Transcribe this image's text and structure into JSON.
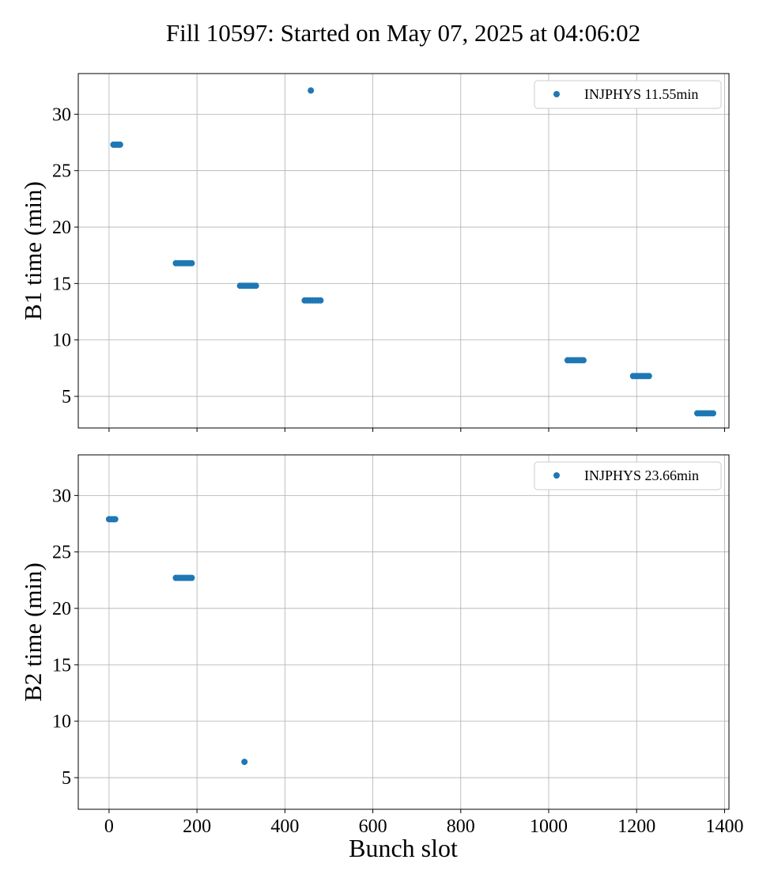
{
  "title": "Fill 10597: Started on May 07, 2025 at 04:06:02",
  "colors": {
    "series": "#1f77b4",
    "grid": "#b0b0b0",
    "axes": "#000000",
    "legend_border": "#cccccc"
  },
  "chart_data": [
    {
      "type": "scatter",
      "xlabel": "",
      "ylabel": "B1 time (min)",
      "xlim": [
        -70,
        1410
      ],
      "ylim": [
        2.2,
        33.6
      ],
      "xticks": [
        0,
        200,
        400,
        600,
        800,
        1000,
        1200,
        1400
      ],
      "yticks": [
        5,
        10,
        15,
        20,
        25,
        30
      ],
      "grid": true,
      "legend_position": "top-right",
      "series": [
        {
          "name": "INJPHYS 11.55min",
          "points": [
            [
              10,
              27.3
            ],
            [
              14,
              27.3
            ],
            [
              18,
              27.3
            ],
            [
              22,
              27.3
            ],
            [
              25,
              27.3
            ],
            [
              152,
              16.8
            ],
            [
              158,
              16.8
            ],
            [
              164,
              16.8
            ],
            [
              170,
              16.8
            ],
            [
              176,
              16.8
            ],
            [
              182,
              16.8
            ],
            [
              188,
              16.8
            ],
            [
              298,
              14.8
            ],
            [
              304,
              14.8
            ],
            [
              310,
              14.8
            ],
            [
              316,
              14.8
            ],
            [
              322,
              14.8
            ],
            [
              328,
              14.8
            ],
            [
              334,
              14.8
            ],
            [
              445,
              13.5
            ],
            [
              451,
              13.5
            ],
            [
              457,
              13.5
            ],
            [
              463,
              13.5
            ],
            [
              469,
              13.5
            ],
            [
              475,
              13.5
            ],
            [
              481,
              13.5
            ],
            [
              459,
              32.1
            ],
            [
              1043,
              8.2
            ],
            [
              1049,
              8.2
            ],
            [
              1055,
              8.2
            ],
            [
              1061,
              8.2
            ],
            [
              1067,
              8.2
            ],
            [
              1073,
              8.2
            ],
            [
              1079,
              8.2
            ],
            [
              1192,
              6.8
            ],
            [
              1198,
              6.8
            ],
            [
              1204,
              6.8
            ],
            [
              1210,
              6.8
            ],
            [
              1216,
              6.8
            ],
            [
              1222,
              6.8
            ],
            [
              1228,
              6.8
            ],
            [
              1338,
              3.5
            ],
            [
              1344,
              3.5
            ],
            [
              1350,
              3.5
            ],
            [
              1356,
              3.5
            ],
            [
              1362,
              3.5
            ],
            [
              1368,
              3.5
            ],
            [
              1374,
              3.5
            ]
          ]
        }
      ]
    },
    {
      "type": "scatter",
      "xlabel": "Bunch slot",
      "ylabel": "B2 time (min)",
      "xlim": [
        -70,
        1410
      ],
      "ylim": [
        2.2,
        33.6
      ],
      "xticks": [
        0,
        200,
        400,
        600,
        800,
        1000,
        1200,
        1400
      ],
      "yticks": [
        5,
        10,
        15,
        20,
        25,
        30
      ],
      "grid": true,
      "legend_position": "top-right",
      "series": [
        {
          "name": "INJPHYS 23.66min",
          "points": [
            [
              0,
              27.9
            ],
            [
              4,
              27.9
            ],
            [
              8,
              27.9
            ],
            [
              12,
              27.9
            ],
            [
              14,
              27.9
            ],
            [
              152,
              22.7
            ],
            [
              158,
              22.7
            ],
            [
              164,
              22.7
            ],
            [
              170,
              22.7
            ],
            [
              176,
              22.7
            ],
            [
              182,
              22.7
            ],
            [
              188,
              22.7
            ],
            [
              308,
              6.4
            ]
          ]
        }
      ]
    }
  ]
}
